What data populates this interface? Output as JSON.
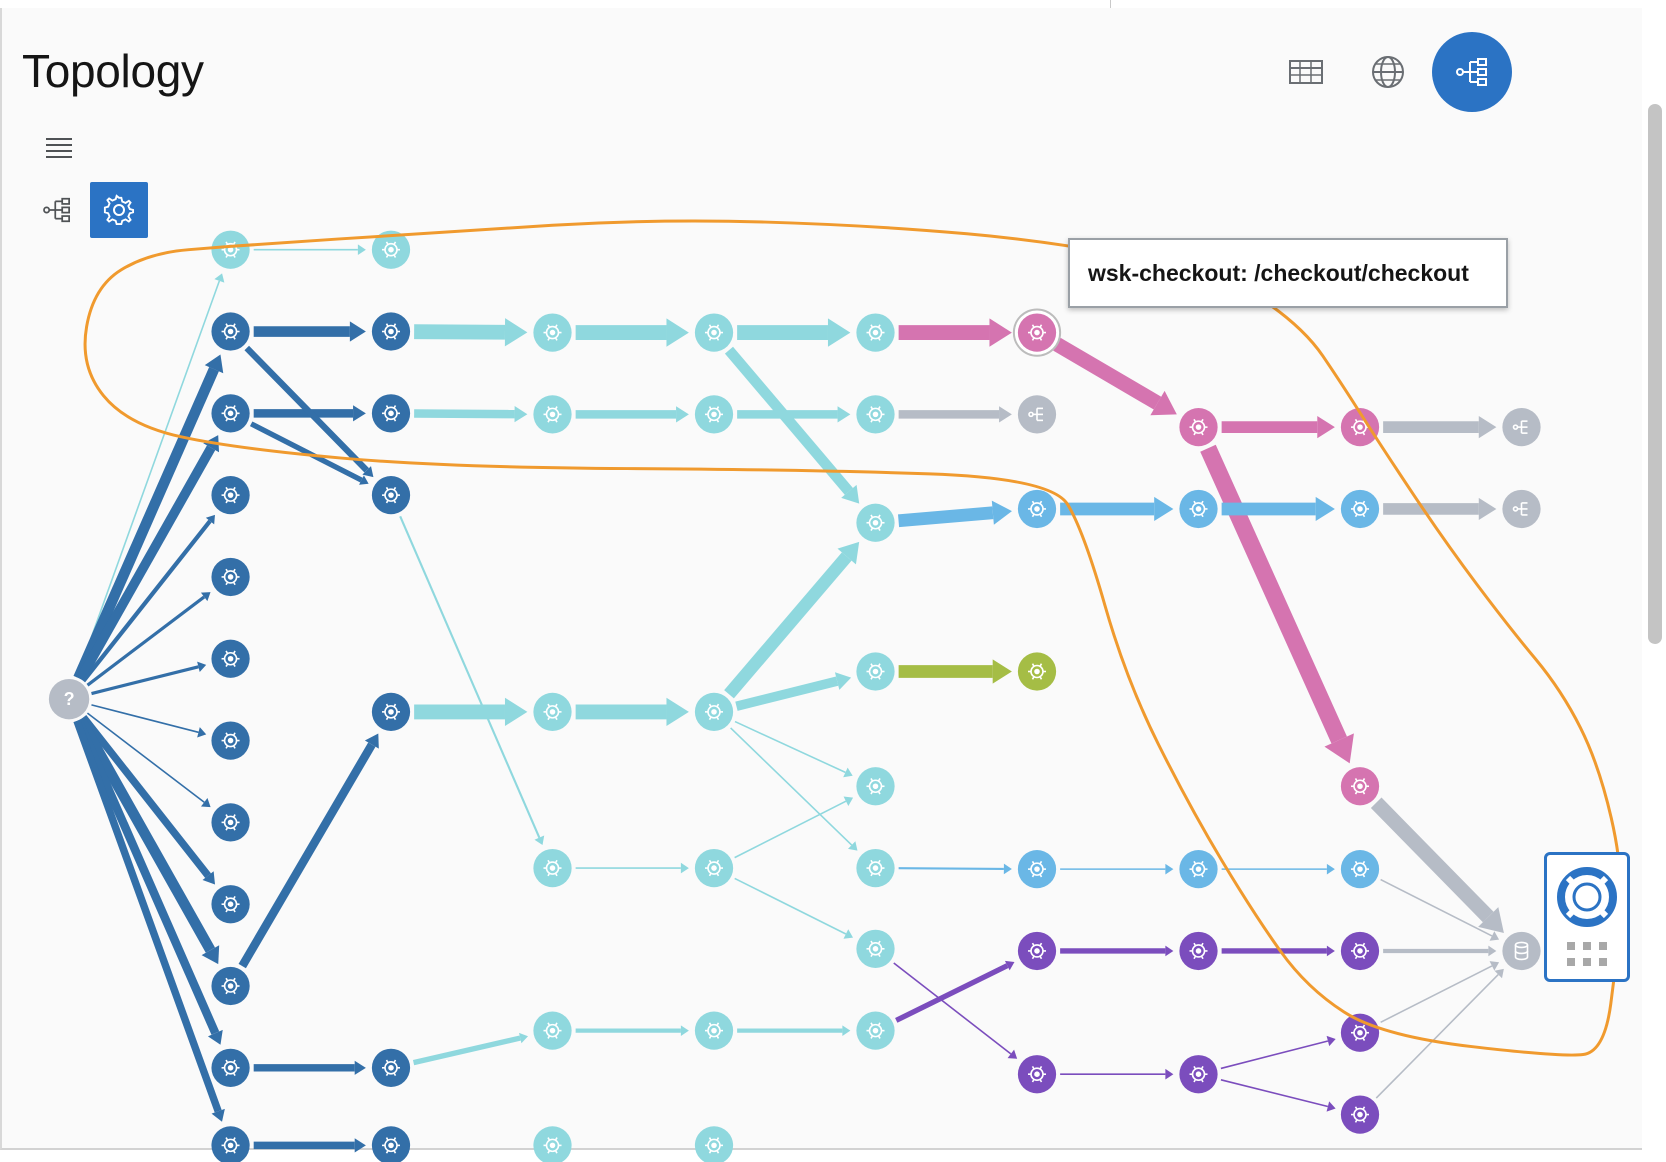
{
  "page": {
    "title": "Topology"
  },
  "header": {
    "table_view": {
      "icon": "table-icon"
    },
    "map_view": {
      "icon": "globe-icon"
    },
    "topology_view": {
      "icon": "topology-icon",
      "active": true
    }
  },
  "toolbar": {
    "menu": {
      "icon": "hamburger-menu-icon"
    },
    "layout": {
      "icon": "topology-icon"
    },
    "settings": {
      "icon": "gear-icon",
      "active": true
    }
  },
  "tooltip": {
    "text": "wsk-checkout: /checkout/checkout"
  },
  "help_widget": {
    "lifebuoy_icon": "lifebuoy-icon",
    "grid_icon": "grid-icon"
  },
  "colors": {
    "navy": "#336fa8",
    "teal": "#8fd8de",
    "pink": "#d574b0",
    "sky": "#6ab7e6",
    "purple": "#7b4dbd",
    "olive": "#a5bd45",
    "gray": "#b6bcc6",
    "highlight": "#f09a2e",
    "accent": "#2b73c4"
  },
  "graph": {
    "unknown_label": "?"
  }
}
